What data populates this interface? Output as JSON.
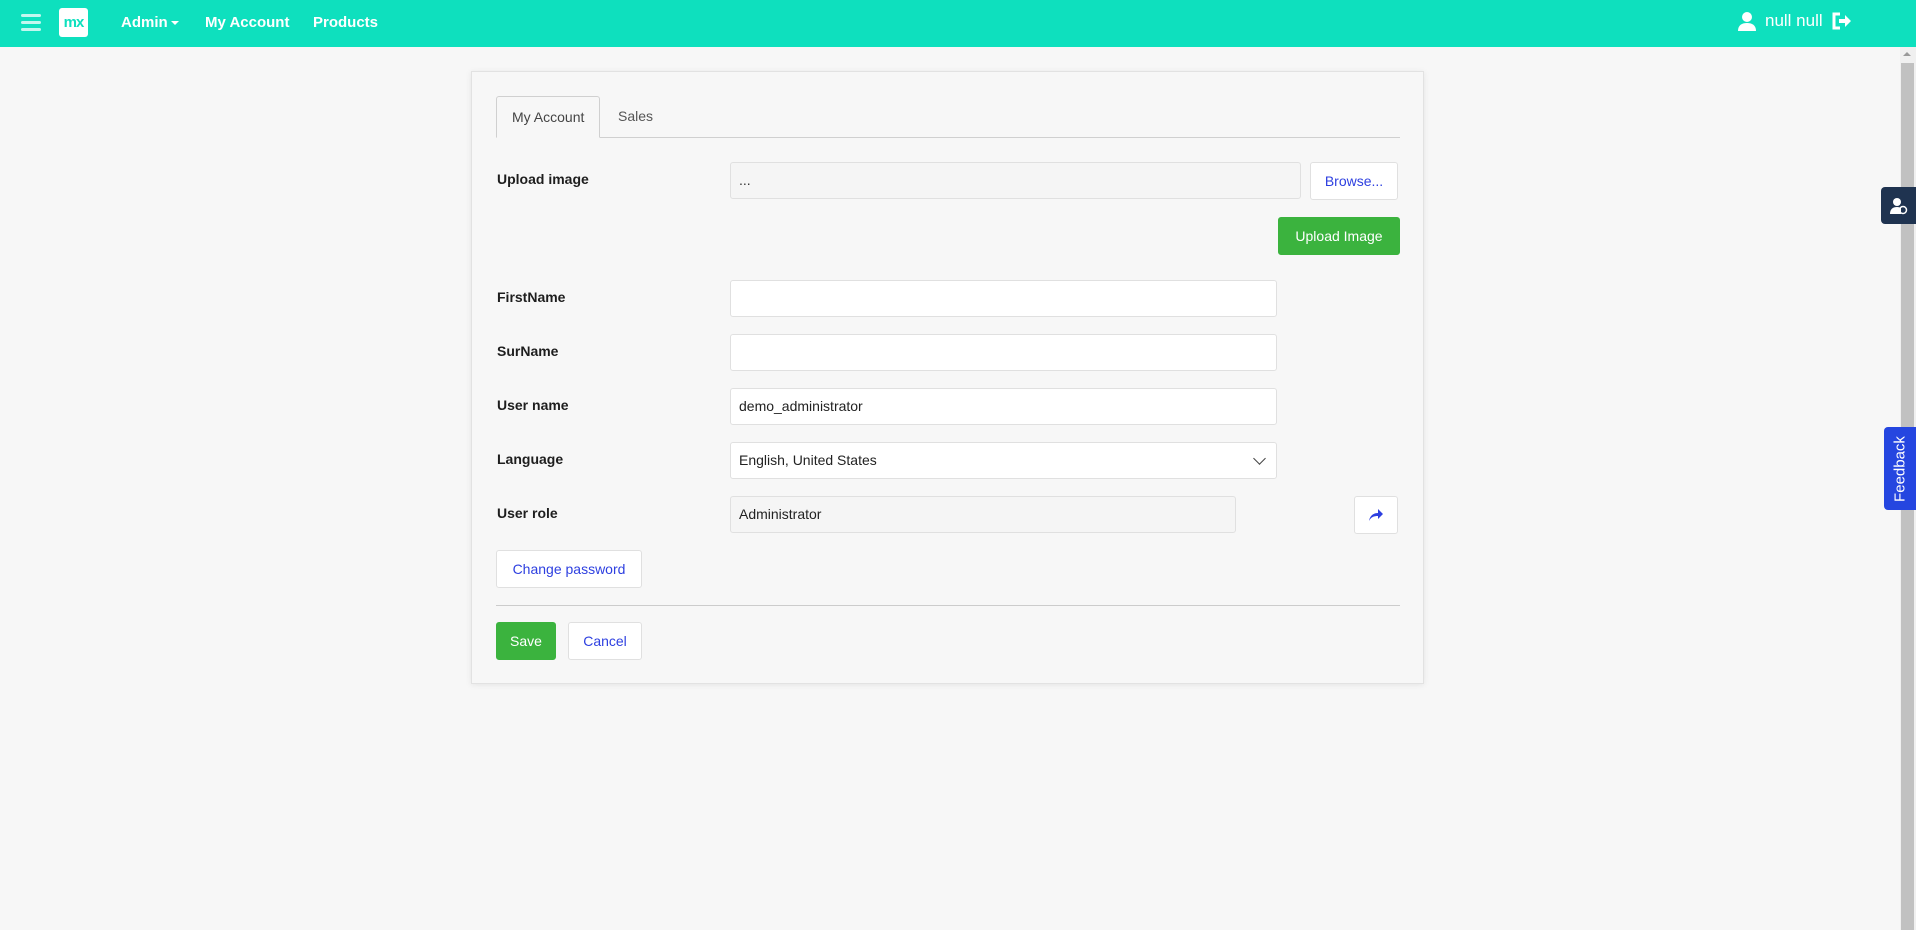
{
  "header": {
    "logo": "mx",
    "nav": [
      {
        "label": "Admin"
      },
      {
        "label": "My Account"
      },
      {
        "label": "Products"
      }
    ],
    "user_name": "null null",
    "brand_color": "#0ee0be"
  },
  "tabs": [
    {
      "label": "My Account",
      "active": true
    },
    {
      "label": "Sales",
      "active": false
    }
  ],
  "form": {
    "upload_label": "Upload image",
    "upload_value": "...",
    "browse": "Browse...",
    "upload_button": "Upload Image",
    "first_name_label": "FirstName",
    "first_name_value": "",
    "surname_label": "SurName",
    "surname_value": "",
    "username_label": "User name",
    "username_value": "demo_administrator",
    "language_label": "Language",
    "language_value": "English, United States",
    "role_label": "User role",
    "role_value": "Administrator",
    "change_password": "Change password",
    "save": "Save",
    "cancel": "Cancel"
  },
  "side": {
    "feedback": "Feedback"
  },
  "colors": {
    "success": "#3bb33e",
    "link": "#2d3fe0",
    "feedback": "#2546e0"
  }
}
